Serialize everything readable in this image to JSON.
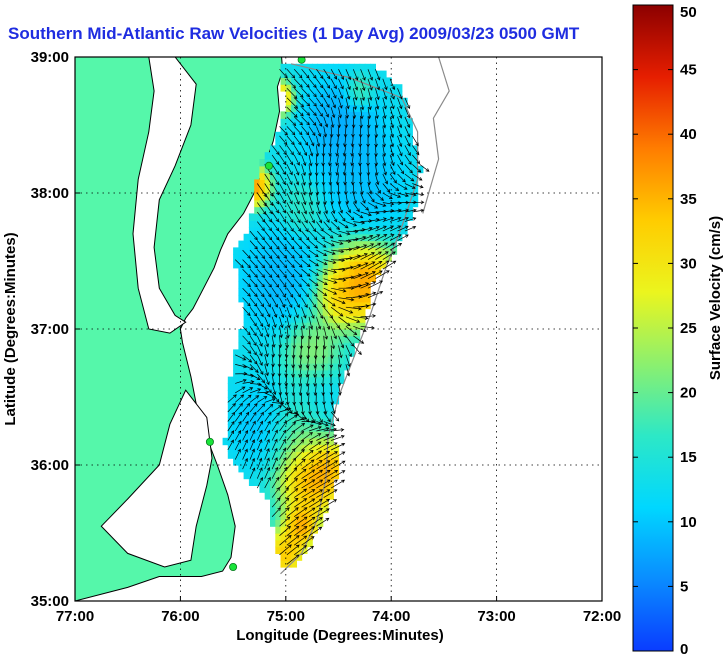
{
  "colors": {
    "title": "#1f2de0",
    "land": "#55f7aa",
    "shoreline": "#000000",
    "isobath": "#8a8a8a",
    "grid": "#000000",
    "station": "#19e43a",
    "arrow": "#000000"
  },
  "colormap": [
    "#0a3cff",
    "#0a8cff",
    "#00d7ff",
    "#2de8c6",
    "#8cf06e",
    "#ebf51e",
    "#ffcc00",
    "#ff7d00",
    "#e61e00",
    "#8c0000"
  ],
  "icons": {
    "station": "circle-marker"
  },
  "chart_data": {
    "type": "heatmap",
    "title": "Southern Mid-Atlantic Raw Velocities (1 Day Avg) 2009/03/23 0500 GMT",
    "xlabel": "Longitude (Degrees:Minutes)",
    "ylabel": "Latitude (Degrees:Minutes)",
    "colorbar_label": "Surface Velocity (cm/s)",
    "xlim": [
      -77,
      -72
    ],
    "ylim": [
      35,
      39
    ],
    "xticks": [
      -77,
      -76,
      -75,
      -74,
      -73,
      -72
    ],
    "xticklabels": [
      "77:00",
      "76:00",
      "75:00",
      "74:00",
      "73:00",
      "72:00"
    ],
    "yticks": [
      35,
      36,
      37,
      38,
      39
    ],
    "yticklabels": [
      "35:00",
      "36:00",
      "37:00",
      "38:00",
      "39:00"
    ],
    "clim": [
      0,
      50
    ],
    "cticks": [
      0,
      5,
      10,
      15,
      20,
      25,
      30,
      35,
      40,
      45,
      50
    ],
    "grid": "dotted",
    "coverage_outline": [
      [
        -75.07,
        38.95
      ],
      [
        -74.55,
        38.97
      ],
      [
        -74.1,
        38.92
      ],
      [
        -73.88,
        38.74
      ],
      [
        -73.8,
        38.45
      ],
      [
        -73.72,
        38.2
      ],
      [
        -73.78,
        37.85
      ],
      [
        -73.98,
        37.55
      ],
      [
        -74.2,
        37.3
      ],
      [
        -74.25,
        37.05
      ],
      [
        -74.38,
        36.8
      ],
      [
        -74.48,
        36.6
      ],
      [
        -74.58,
        36.3
      ],
      [
        -74.5,
        36.1
      ],
      [
        -74.52,
        35.92
      ],
      [
        -74.6,
        35.7
      ],
      [
        -74.72,
        35.5
      ],
      [
        -74.88,
        35.28
      ],
      [
        -75.05,
        35.25
      ],
      [
        -75.1,
        35.4
      ],
      [
        -75.15,
        35.72
      ],
      [
        -75.3,
        35.85
      ],
      [
        -75.5,
        36.0
      ],
      [
        -75.58,
        36.15
      ],
      [
        -75.55,
        36.5
      ],
      [
        -75.5,
        36.8
      ],
      [
        -75.4,
        37.05
      ],
      [
        -75.45,
        37.3
      ],
      [
        -75.5,
        37.55
      ],
      [
        -75.35,
        37.7
      ],
      [
        -75.3,
        37.95
      ],
      [
        -75.25,
        38.2
      ],
      [
        -75.1,
        38.4
      ],
      [
        -75.0,
        38.65
      ]
    ],
    "speed_blobs": [
      {
        "lon": -74.5,
        "lat": 38.5,
        "r": 0.28,
        "speed": 6
      },
      {
        "lon": -74.3,
        "lat": 38.2,
        "r": 0.3,
        "speed": 8
      },
      {
        "lon": -75.05,
        "lat": 37.35,
        "r": 0.3,
        "speed": 7
      },
      {
        "lon": -75.2,
        "lat": 36.3,
        "r": 0.25,
        "speed": 8
      },
      {
        "lon": -74.7,
        "lat": 36.45,
        "r": 0.22,
        "speed": 10
      },
      {
        "lon": -74.2,
        "lat": 37.95,
        "r": 0.25,
        "speed": 9
      },
      {
        "lon": -75.3,
        "lat": 38.05,
        "r": 0.12,
        "speed": 47
      },
      {
        "lon": -75.05,
        "lat": 38.7,
        "r": 0.1,
        "speed": 42
      },
      {
        "lon": -74.25,
        "lat": 37.35,
        "r": 0.25,
        "speed": 46
      },
      {
        "lon": -74.5,
        "lat": 37.25,
        "r": 0.18,
        "speed": 38
      },
      {
        "lon": -74.75,
        "lat": 36.85,
        "r": 0.22,
        "speed": 26
      },
      {
        "lon": -74.85,
        "lat": 36.25,
        "r": 0.25,
        "speed": 24
      },
      {
        "lon": -74.75,
        "lat": 35.9,
        "r": 0.25,
        "speed": 45
      },
      {
        "lon": -74.6,
        "lat": 36.0,
        "r": 0.15,
        "speed": 40
      },
      {
        "lon": -74.85,
        "lat": 35.55,
        "r": 0.13,
        "speed": 44
      },
      {
        "lon": -75.0,
        "lat": 35.35,
        "r": 0.15,
        "speed": 42
      },
      {
        "lon": -74.3,
        "lat": 38.75,
        "r": 0.1,
        "speed": 22
      },
      {
        "lon": -74.85,
        "lat": 37.9,
        "r": 0.15,
        "speed": 18
      }
    ],
    "background_speed": 13,
    "flow_field": [
      {
        "lon": -74.5,
        "lat": 38.3,
        "u": -0.25,
        "v": -1.0
      },
      {
        "lon": -74.1,
        "lat": 37.5,
        "u": 0.9,
        "v": 0.6
      },
      {
        "lon": -74.8,
        "lat": 36.7,
        "u": -0.2,
        "v": -1.0
      },
      {
        "lon": -74.8,
        "lat": 35.8,
        "u": 1.0,
        "v": 0.55
      },
      {
        "lon": -75.2,
        "lat": 36.0,
        "u": 0.3,
        "v": 1.0
      },
      {
        "lon": -74.9,
        "lat": 38.6,
        "u": 0.6,
        "v": -0.5
      }
    ],
    "stations": [
      {
        "lon": -74.85,
        "lat": 38.98
      },
      {
        "lon": -75.16,
        "lat": 38.2
      },
      {
        "lon": -75.72,
        "lat": 36.17
      },
      {
        "lon": -75.5,
        "lat": 35.25
      }
    ]
  },
  "map": {
    "land_polygon": [
      [
        -77,
        39
      ],
      [
        -75.04,
        39
      ],
      [
        -75.03,
        38.9
      ],
      [
        -75.08,
        38.78
      ],
      [
        -75.06,
        38.6
      ],
      [
        -75.12,
        38.38
      ],
      [
        -75.2,
        38.2
      ],
      [
        -75.3,
        38.0
      ],
      [
        -75.4,
        37.85
      ],
      [
        -75.55,
        37.7
      ],
      [
        -75.62,
        37.58
      ],
      [
        -75.68,
        37.45
      ],
      [
        -75.78,
        37.3
      ],
      [
        -75.88,
        37.15
      ],
      [
        -75.95,
        37.08
      ],
      [
        -76.0,
        37.0
      ],
      [
        -75.98,
        36.9
      ],
      [
        -75.9,
        36.65
      ],
      [
        -75.85,
        36.45
      ],
      [
        -75.75,
        36.2
      ],
      [
        -75.65,
        36.0
      ],
      [
        -75.55,
        35.78
      ],
      [
        -75.48,
        35.55
      ],
      [
        -75.52,
        35.32
      ],
      [
        -75.6,
        35.22
      ],
      [
        -75.8,
        35.18
      ],
      [
        -76.2,
        35.18
      ],
      [
        -76.5,
        35.1
      ],
      [
        -77,
        35
      ]
    ],
    "water_bodies": [
      [
        [
          -76.05,
          39
        ],
        [
          -75.85,
          38.8
        ],
        [
          -75.9,
          38.5
        ],
        [
          -76.05,
          38.2
        ],
        [
          -76.2,
          37.95
        ],
        [
          -76.25,
          37.6
        ],
        [
          -76.2,
          37.3
        ],
        [
          -76.05,
          37.1
        ],
        [
          -75.95,
          37.05
        ],
        [
          -76.1,
          36.97
        ],
        [
          -76.3,
          37.0
        ],
        [
          -76.4,
          37.3
        ],
        [
          -76.45,
          37.7
        ],
        [
          -76.4,
          38.1
        ],
        [
          -76.3,
          38.45
        ],
        [
          -76.25,
          38.75
        ],
        [
          -76.3,
          39
        ]
      ],
      [
        [
          -75.95,
          36.55
        ],
        [
          -75.75,
          36.35
        ],
        [
          -75.7,
          36.05
        ],
        [
          -75.75,
          35.85
        ],
        [
          -75.85,
          35.55
        ],
        [
          -75.9,
          35.3
        ],
        [
          -76.15,
          35.25
        ],
        [
          -76.5,
          35.35
        ],
        [
          -76.75,
          35.55
        ],
        [
          -76.5,
          35.75
        ],
        [
          -76.2,
          36.0
        ],
        [
          -76.1,
          36.3
        ]
      ]
    ],
    "isobaths": [
      [
        [
          -74.95,
          38.95
        ],
        [
          -74.4,
          38.85
        ],
        [
          -73.9,
          38.7
        ],
        [
          -73.75,
          38.45
        ],
        [
          -73.75,
          38.1
        ],
        [
          -73.9,
          37.75
        ],
        [
          -74.05,
          37.45
        ],
        [
          -74.2,
          37.1
        ],
        [
          -74.35,
          36.8
        ],
        [
          -74.5,
          36.5
        ],
        [
          -74.6,
          36.2
        ],
        [
          -74.62,
          35.9
        ],
        [
          -74.7,
          35.6
        ],
        [
          -74.85,
          35.35
        ],
        [
          -75.05,
          35.2
        ]
      ],
      [
        [
          -73.55,
          39.0
        ],
        [
          -73.45,
          38.75
        ],
        [
          -73.6,
          38.55
        ],
        [
          -73.55,
          38.25
        ],
        [
          -73.7,
          37.85
        ]
      ]
    ]
  }
}
